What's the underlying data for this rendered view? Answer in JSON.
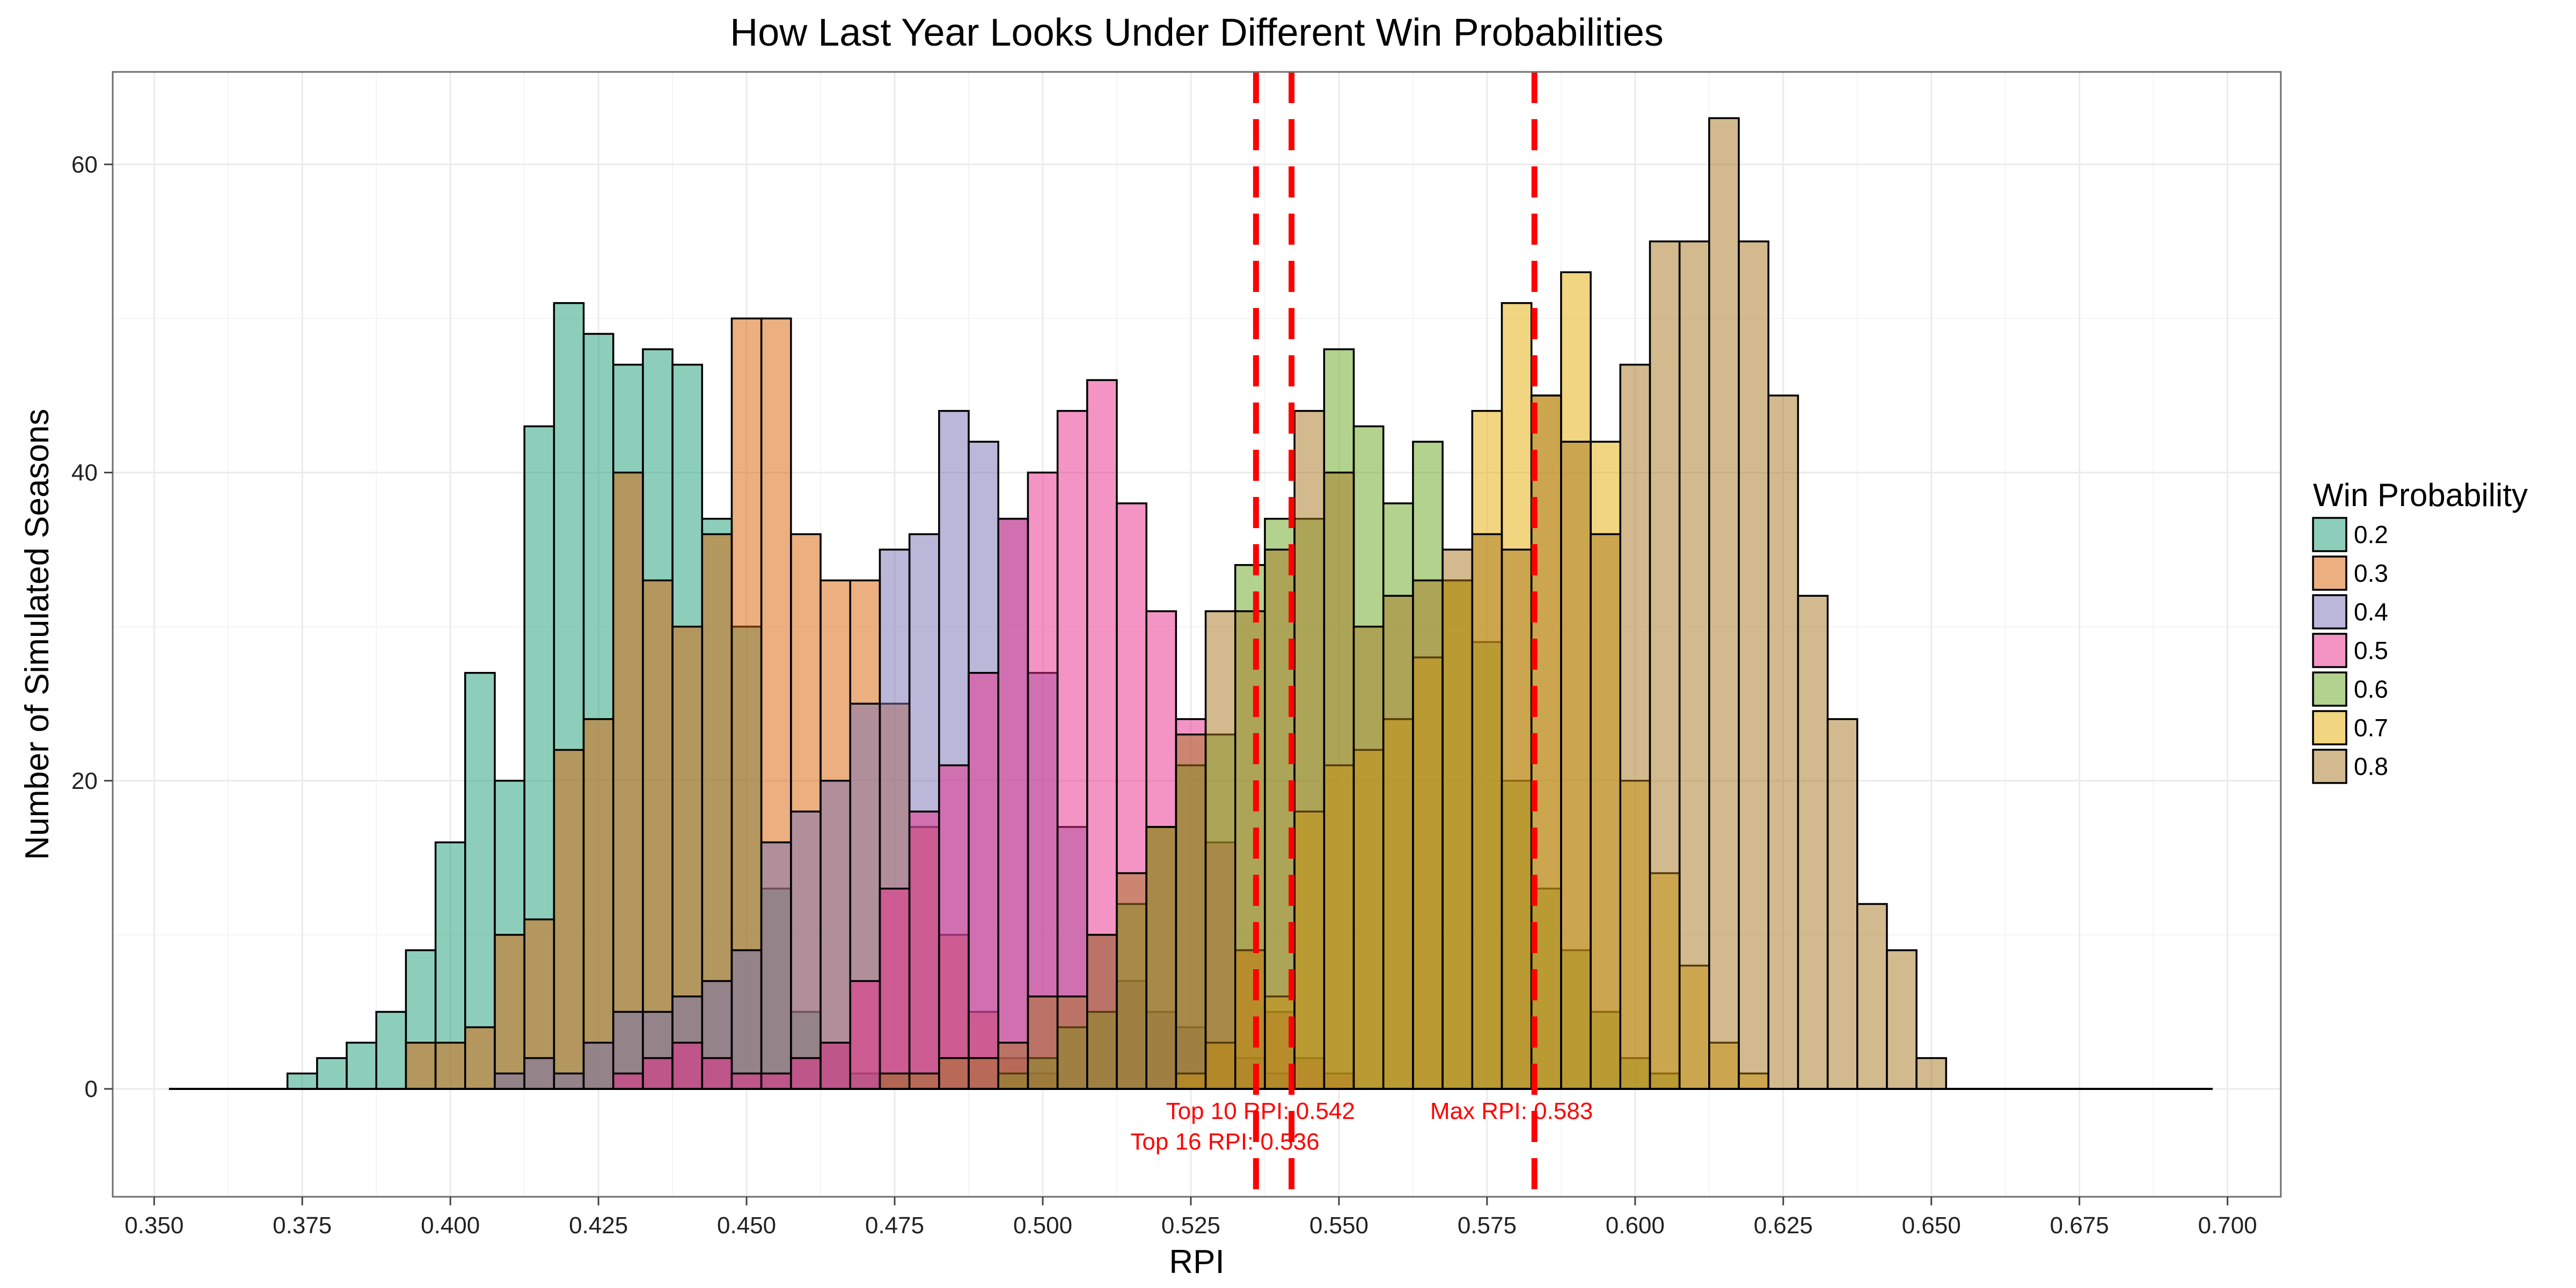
{
  "chart_data": {
    "type": "bar",
    "title": "How Last Year Looks Under Different Win Probabilities",
    "xlabel": "RPI",
    "ylabel": "Number of Simulated Seasons",
    "xlim": [
      0.343,
      0.709
    ],
    "ylim": [
      -7,
      66
    ],
    "bin_width": 0.005,
    "x_ticks": [
      0.35,
      0.375,
      0.4,
      0.425,
      0.45,
      0.475,
      0.5,
      0.525,
      0.55,
      0.575,
      0.6,
      0.625,
      0.65,
      0.675,
      0.7
    ],
    "x_tick_labels": [
      "0.350",
      "0.375",
      "0.400",
      "0.425",
      "0.450",
      "0.475",
      "0.500",
      "0.525",
      "0.550",
      "0.575",
      "0.600",
      "0.625",
      "0.650",
      "0.675",
      "0.700"
    ],
    "y_ticks": [
      0,
      20,
      40,
      60
    ],
    "y_tick_labels": [
      "0",
      "20",
      "40",
      "60"
    ],
    "baseline_range": [
      0.3525,
      0.6975
    ],
    "grid": true,
    "legend": {
      "title": "Win Probability",
      "placement": "right"
    },
    "series": [
      {
        "name": "0.2",
        "color": "#1b9e77",
        "start": 0.3725,
        "values": [
          1,
          2,
          3,
          5,
          9,
          16,
          27,
          20,
          43,
          51,
          49,
          47,
          48,
          47,
          37,
          30,
          13,
          5,
          3,
          1,
          1
        ]
      },
      {
        "name": "0.3",
        "color": "#d95f02",
        "start": 0.3925,
        "values": [
          3,
          3,
          4,
          10,
          11,
          22,
          24,
          40,
          33,
          30,
          36,
          50,
          50,
          36,
          33,
          33,
          25,
          17,
          10,
          5,
          2,
          1
        ]
      },
      {
        "name": "0.4",
        "color": "#7570b3",
        "start": 0.4075,
        "values": [
          1,
          2,
          1,
          3,
          5,
          5,
          6,
          7,
          9,
          16,
          18,
          20,
          25,
          35,
          36,
          44,
          42,
          37,
          27,
          17,
          10,
          7,
          5,
          4,
          3,
          2,
          1
        ]
      },
      {
        "name": "0.5",
        "color": "#e7298a",
        "start": 0.4275,
        "values": [
          1,
          2,
          3,
          2,
          1,
          1,
          2,
          3,
          7,
          13,
          18,
          21,
          27,
          37,
          40,
          44,
          46,
          38,
          31,
          24,
          16,
          9,
          5,
          2,
          1
        ]
      },
      {
        "name": "0.6",
        "color": "#66a61e",
        "start": 0.4925,
        "values": [
          1,
          2,
          4,
          5,
          12,
          17,
          21,
          23,
          34,
          37,
          37,
          48,
          43,
          38,
          42,
          33,
          29,
          20,
          13,
          9,
          5,
          2,
          1
        ]
      },
      {
        "name": "0.7",
        "color": "#e6ab02",
        "start": 0.5225,
        "values": [
          1,
          3,
          9,
          6,
          18,
          21,
          22,
          24,
          28,
          33,
          44,
          51,
          45,
          53,
          42,
          20,
          14,
          8,
          3,
          1
        ]
      },
      {
        "name": "0.8",
        "color": "#a6761d",
        "start": 0.4725,
        "values": [
          1,
          1,
          2,
          2,
          3,
          6,
          6,
          10,
          14,
          17,
          23,
          31,
          31,
          35,
          44,
          40,
          30,
          32,
          33,
          35,
          36,
          35,
          45,
          42,
          36,
          47,
          55,
          55,
          63,
          55,
          45,
          32,
          24,
          12,
          9,
          2
        ]
      }
    ],
    "reference_lines": [
      {
        "x": 0.536,
        "label": "Top 16 RPI: 0.536",
        "color": "#ff0000"
      },
      {
        "x": 0.542,
        "label": "Top 10 RPI: 0.542",
        "color": "#ff0000"
      },
      {
        "x": 0.583,
        "label": "Max RPI: 0.583",
        "color": "#ff0000"
      }
    ]
  }
}
